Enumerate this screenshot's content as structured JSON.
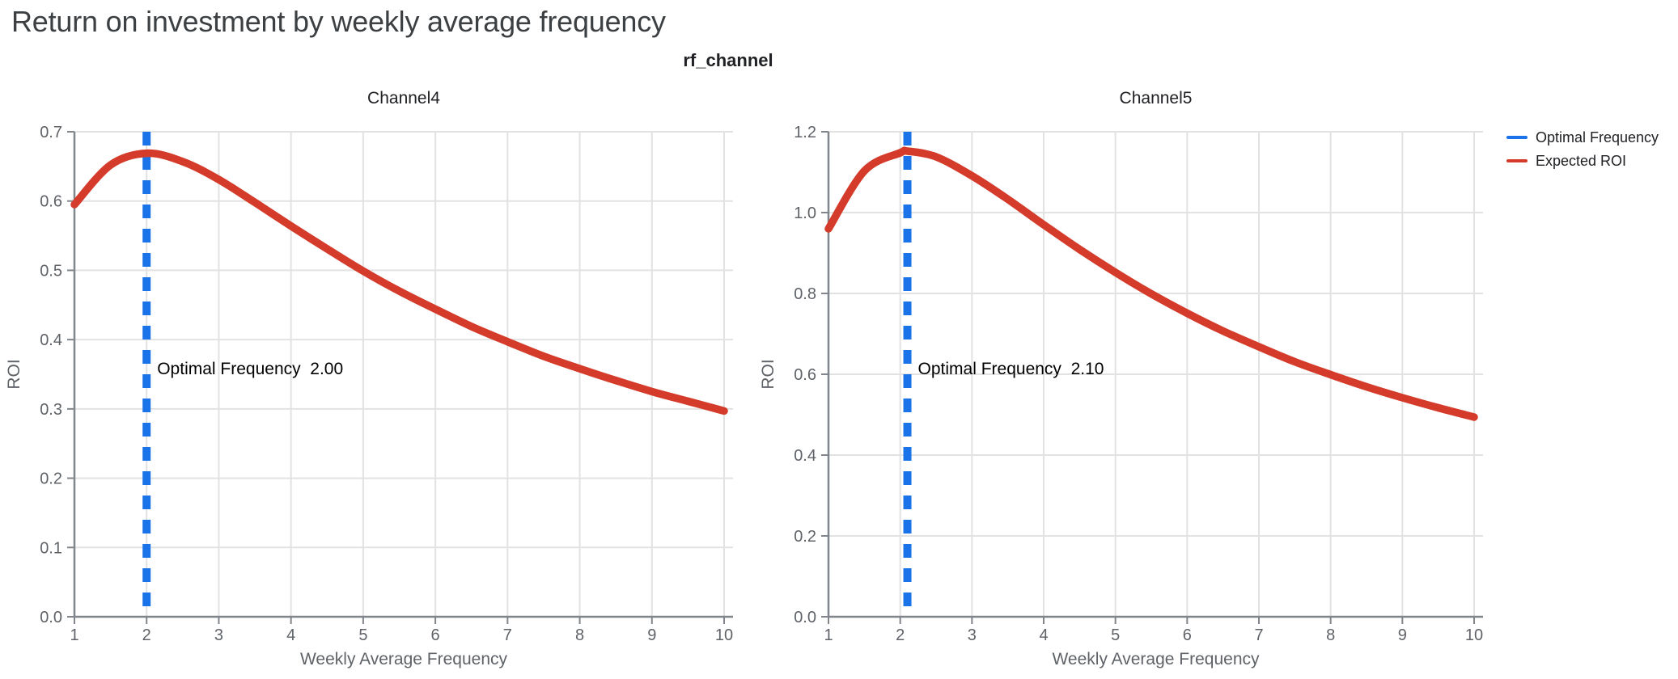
{
  "page": {
    "title": "Return on investment by weekly average frequency",
    "subtitle": "rf_channel"
  },
  "legend": {
    "items": [
      {
        "label": "Optimal Frequency",
        "color": "#1a73e8"
      },
      {
        "label": "Expected ROI",
        "color": "#d43b2a"
      }
    ]
  },
  "colors": {
    "title": "#3c4043",
    "text": "#202124",
    "tick_label": "#5f6368",
    "grid": "#e2e2e2",
    "axis": "#80868b",
    "optimal_line": "#1a73e8",
    "roi_line": "#d43b2a",
    "annotation": "#000000"
  },
  "chart_data": [
    {
      "type": "line",
      "title": "Channel4",
      "xlabel": "Weekly Average Frequency",
      "ylabel": "ROI",
      "xlim": [
        1,
        10
      ],
      "xticks": [
        1,
        2,
        3,
        4,
        5,
        6,
        7,
        8,
        9,
        10
      ],
      "ylim": [
        0.0,
        0.7
      ],
      "yticks": [
        0.0,
        0.1,
        0.2,
        0.3,
        0.4,
        0.5,
        0.6,
        0.7
      ],
      "grid": true,
      "optimal_frequency": 2.0,
      "annotation": "Optimal Frequency  2.00",
      "series": [
        {
          "name": "Expected ROI",
          "x": [
            1,
            1.5,
            2,
            2.5,
            3,
            3.5,
            4,
            4.5,
            5,
            5.5,
            6,
            6.5,
            7,
            7.5,
            8,
            8.5,
            9,
            9.5,
            10
          ],
          "y": [
            0.595,
            0.652,
            0.669,
            0.657,
            0.631,
            0.598,
            0.564,
            0.531,
            0.499,
            0.47,
            0.444,
            0.419,
            0.397,
            0.376,
            0.358,
            0.341,
            0.325,
            0.311,
            0.297
          ]
        }
      ]
    },
    {
      "type": "line",
      "title": "Channel5",
      "xlabel": "Weekly Average Frequency",
      "ylabel": "ROI",
      "xlim": [
        1,
        10
      ],
      "xticks": [
        1,
        2,
        3,
        4,
        5,
        6,
        7,
        8,
        9,
        10
      ],
      "ylim": [
        0.0,
        1.2
      ],
      "yticks": [
        0.0,
        0.2,
        0.4,
        0.6,
        0.8,
        1.0,
        1.2
      ],
      "grid": true,
      "optimal_frequency": 2.1,
      "annotation": "Optimal Frequency  2.10",
      "series": [
        {
          "name": "Expected ROI",
          "x": [
            1,
            1.5,
            2,
            2.1,
            2.5,
            3,
            3.5,
            4,
            4.5,
            5,
            5.5,
            6,
            6.5,
            7,
            7.5,
            8,
            8.5,
            9,
            9.5,
            10
          ],
          "y": [
            0.96,
            1.103,
            1.148,
            1.152,
            1.138,
            1.091,
            1.033,
            0.97,
            0.909,
            0.852,
            0.799,
            0.751,
            0.707,
            0.668,
            0.631,
            0.599,
            0.569,
            0.542,
            0.517,
            0.494
          ]
        }
      ]
    }
  ]
}
